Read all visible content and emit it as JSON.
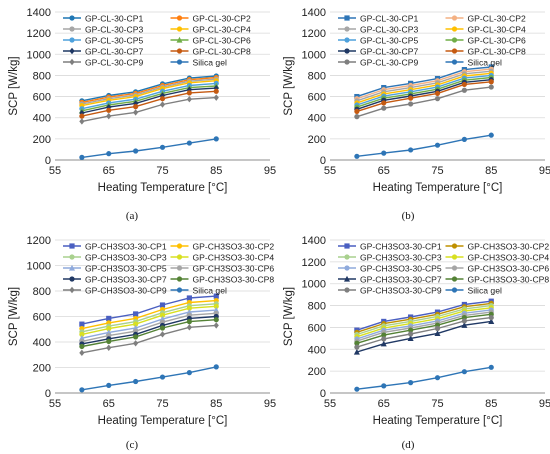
{
  "figure": {
    "panels": [
      {
        "caption": "(a)"
      },
      {
        "caption": "(b)"
      },
      {
        "caption": "(c)"
      },
      {
        "caption": "(d)"
      }
    ]
  },
  "chart_data": [
    {
      "type": "line",
      "xlabel": "Heating Temperature [°C]",
      "ylabel": "SCP [W/kg]",
      "xlim": [
        55,
        95
      ],
      "ylim": [
        0,
        1400
      ],
      "xticks": [
        55,
        65,
        75,
        85,
        95
      ],
      "yticks": [
        0,
        200,
        400,
        600,
        800,
        1000,
        1200,
        1400
      ],
      "x": [
        60,
        65,
        70,
        75,
        80,
        85
      ],
      "legend": "top-left, 2 columns",
      "grid": "horizontal",
      "series": [
        {
          "name": "GP-CL-30-CP1",
          "color": "#1f77b4",
          "marker": "circle",
          "values": [
            560,
            610,
            645,
            720,
            775,
            795
          ]
        },
        {
          "name": "GP-CL-30-CP2",
          "color": "#ff7f0e",
          "marker": "circle",
          "values": [
            545,
            595,
            630,
            705,
            760,
            780
          ]
        },
        {
          "name": "GP-CL-30-CP3",
          "color": "#a6a6a6",
          "marker": "circle",
          "values": [
            530,
            580,
            615,
            690,
            745,
            765
          ]
        },
        {
          "name": "GP-CL-30-CP4",
          "color": "#ffc000",
          "marker": "circle",
          "values": [
            515,
            565,
            600,
            675,
            730,
            750
          ]
        },
        {
          "name": "GP-CL-30-CP5",
          "color": "#4ea1dc",
          "marker": "circle",
          "values": [
            485,
            540,
            575,
            650,
            705,
            725
          ]
        },
        {
          "name": "GP-CL-30-CP6",
          "color": "#70ad47",
          "marker": "triangle",
          "values": [
            465,
            520,
            555,
            630,
            685,
            700
          ]
        },
        {
          "name": "GP-CL-30-CP7",
          "color": "#1f3864",
          "marker": "diamond",
          "values": [
            445,
            500,
            535,
            610,
            665,
            680
          ]
        },
        {
          "name": "GP-CL-30-CP8",
          "color": "#c55a11",
          "marker": "circle",
          "values": [
            415,
            470,
            505,
            580,
            635,
            650
          ]
        },
        {
          "name": "GP-CL-30-CP9",
          "color": "#7f7f7f",
          "marker": "diamond",
          "values": [
            365,
            415,
            450,
            525,
            575,
            590
          ]
        },
        {
          "name": "Silica gel",
          "color": "#2e75b6",
          "marker": "circle",
          "values": [
            25,
            60,
            85,
            120,
            160,
            200
          ]
        }
      ]
    },
    {
      "type": "line",
      "xlabel": "Heating Temperature [°C]",
      "ylabel": "SCP [W/kg]",
      "xlim": [
        55,
        95
      ],
      "ylim": [
        0,
        1400
      ],
      "xticks": [
        55,
        65,
        75,
        85,
        95
      ],
      "yticks": [
        0,
        200,
        400,
        600,
        800,
        1000,
        1200,
        1400
      ],
      "x": [
        60,
        65,
        70,
        75,
        80,
        85
      ],
      "legend": "top-left, 2 columns",
      "grid": "horizontal",
      "series": [
        {
          "name": "GP-CL-30-CP1",
          "color": "#2e75b6",
          "marker": "square",
          "values": [
            600,
            685,
            725,
            770,
            855,
            880
          ]
        },
        {
          "name": "GP-CL-30-CP2",
          "color": "#f4b183",
          "marker": "circle",
          "values": [
            580,
            665,
            705,
            750,
            835,
            860
          ]
        },
        {
          "name": "GP-CL-30-CP3",
          "color": "#a6a6a6",
          "marker": "circle",
          "values": [
            560,
            645,
            685,
            730,
            815,
            840
          ]
        },
        {
          "name": "GP-CL-30-CP4",
          "color": "#ffc000",
          "marker": "circle",
          "values": [
            540,
            625,
            665,
            710,
            795,
            820
          ]
        },
        {
          "name": "GP-CL-30-CP5",
          "color": "#4ea1dc",
          "marker": "circle",
          "values": [
            520,
            605,
            645,
            690,
            775,
            800
          ]
        },
        {
          "name": "GP-CL-30-CP6",
          "color": "#70ad47",
          "marker": "circle",
          "values": [
            500,
            585,
            625,
            670,
            755,
            780
          ]
        },
        {
          "name": "GP-CL-30-CP7",
          "color": "#1f3864",
          "marker": "circle",
          "values": [
            480,
            565,
            605,
            650,
            735,
            760
          ]
        },
        {
          "name": "GP-CL-30-CP8",
          "color": "#c55a11",
          "marker": "circle",
          "values": [
            460,
            540,
            585,
            630,
            715,
            740
          ]
        },
        {
          "name": "GP-CL-30-CP9",
          "color": "#7f7f7f",
          "marker": "circle",
          "values": [
            410,
            490,
            530,
            580,
            660,
            690
          ]
        },
        {
          "name": "Silica gel",
          "color": "#2e75b6",
          "marker": "circle",
          "values": [
            35,
            65,
            95,
            140,
            195,
            235
          ]
        }
      ]
    },
    {
      "type": "line",
      "xlabel": "Heating Temperature [°C]",
      "ylabel": "SCP [W/kg]",
      "xlim": [
        55,
        95
      ],
      "ylim": [
        0,
        1200
      ],
      "xticks": [
        55,
        65,
        75,
        85,
        95
      ],
      "yticks": [
        0,
        200,
        400,
        600,
        800,
        1000,
        1200
      ],
      "x": [
        60,
        65,
        70,
        75,
        80,
        85
      ],
      "legend": "top-left, 2 columns",
      "grid": "horizontal",
      "series": [
        {
          "name": "GP-CH3SO3-30-CP1",
          "color": "#4a5fc1",
          "marker": "square",
          "values": [
            540,
            585,
            620,
            690,
            745,
            760
          ]
        },
        {
          "name": "GP-CH3SO3-30-CP2",
          "color": "#ffc000",
          "marker": "circle",
          "values": [
            505,
            550,
            585,
            655,
            710,
            725
          ]
        },
        {
          "name": "GP-CH3SO3-30-CP3",
          "color": "#a9d18e",
          "marker": "circle",
          "values": [
            480,
            525,
            560,
            630,
            685,
            700
          ]
        },
        {
          "name": "GP-CH3SO3-30-CP4",
          "color": "#d8e021",
          "marker": "circle",
          "values": [
            460,
            505,
            540,
            610,
            665,
            680
          ]
        },
        {
          "name": "GP-CH3SO3-30-CP5",
          "color": "#8faadc",
          "marker": "triangle",
          "values": [
            430,
            475,
            510,
            580,
            635,
            650
          ]
        },
        {
          "name": "GP-CH3SO3-30-CP6",
          "color": "#a5a5a5",
          "marker": "circle",
          "values": [
            405,
            450,
            485,
            555,
            610,
            625
          ]
        },
        {
          "name": "GP-CH3SO3-30-CP7",
          "color": "#203864",
          "marker": "circle",
          "values": [
            385,
            425,
            460,
            530,
            585,
            600
          ]
        },
        {
          "name": "GP-CH3SO3-30-CP8",
          "color": "#548235",
          "marker": "circle",
          "values": [
            365,
            405,
            440,
            510,
            560,
            575
          ]
        },
        {
          "name": "GP-CH3SO3-30-CP9",
          "color": "#7f7f7f",
          "marker": "diamond",
          "values": [
            315,
            355,
            390,
            460,
            515,
            530
          ]
        },
        {
          "name": "Silica gel",
          "color": "#2e75b6",
          "marker": "circle",
          "values": [
            25,
            60,
            90,
            125,
            160,
            205
          ]
        }
      ]
    },
    {
      "type": "line",
      "xlabel": "Heating Temperature [°C]",
      "ylabel": "SCP [W/kg]",
      "xlim": [
        55,
        95
      ],
      "ylim": [
        0,
        1400
      ],
      "xticks": [
        55,
        65,
        75,
        85,
        95
      ],
      "yticks": [
        0,
        200,
        400,
        600,
        800,
        1000,
        1200,
        1400
      ],
      "x": [
        60,
        65,
        70,
        75,
        80,
        85
      ],
      "legend": "top-left, 2 columns",
      "grid": "horizontal",
      "series": [
        {
          "name": "GP-CH3SO3-30-CP1",
          "color": "#4a5fc1",
          "marker": "square",
          "values": [
            575,
            655,
            695,
            740,
            810,
            840
          ]
        },
        {
          "name": "GP-CH3SO3-30-CP2",
          "color": "#bf9000",
          "marker": "circle",
          "values": [
            555,
            635,
            675,
            720,
            790,
            820
          ]
        },
        {
          "name": "GP-CH3SO3-30-CP3",
          "color": "#a9d18e",
          "marker": "circle",
          "values": [
            535,
            615,
            655,
            700,
            770,
            800
          ]
        },
        {
          "name": "GP-CH3SO3-30-CP4",
          "color": "#d8e021",
          "marker": "circle",
          "values": [
            515,
            595,
            635,
            680,
            750,
            780
          ]
        },
        {
          "name": "GP-CH3SO3-30-CP5",
          "color": "#8faadc",
          "marker": "circle",
          "values": [
            495,
            575,
            615,
            660,
            730,
            760
          ]
        },
        {
          "name": "GP-CH3SO3-30-CP6",
          "color": "#a5a5a5",
          "marker": "circle",
          "values": [
            475,
            555,
            595,
            640,
            710,
            740
          ]
        },
        {
          "name": "GP-CH3SO3-30-CP7",
          "color": "#203864",
          "marker": "triangle",
          "values": [
            375,
            450,
            500,
            545,
            620,
            655
          ]
        },
        {
          "name": "GP-CH3SO3-30-CP8",
          "color": "#548235",
          "marker": "circle",
          "values": [
            455,
            530,
            575,
            620,
            690,
            720
          ]
        },
        {
          "name": "GP-CH3SO3-30-CP9",
          "color": "#7f7f7f",
          "marker": "circle",
          "values": [
            420,
            495,
            540,
            590,
            660,
            690
          ]
        },
        {
          "name": "Silica gel",
          "color": "#2e75b6",
          "marker": "circle",
          "values": [
            35,
            65,
            95,
            140,
            195,
            235
          ]
        }
      ]
    }
  ]
}
